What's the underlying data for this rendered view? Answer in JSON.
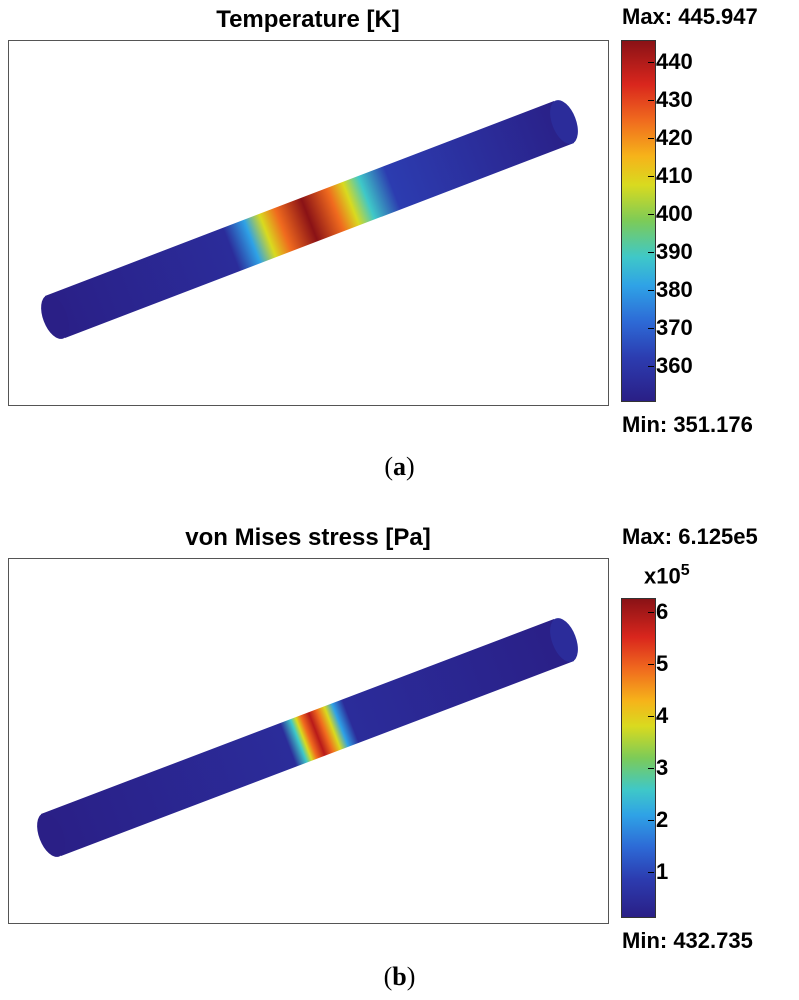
{
  "panel_a": {
    "title": "Temperature [K]",
    "max_label": "Max: 445.947",
    "min_label": "Min: 351.176",
    "colorbar_ticks": [
      "440",
      "430",
      "420",
      "410",
      "400",
      "390",
      "380",
      "370",
      "360"
    ],
    "caption_letter": "a",
    "data_range": [
      351.176,
      445.947
    ]
  },
  "panel_b": {
    "title": "von Mises stress [Pa]",
    "max_label": "Max: 6.125e5",
    "min_label": "Min: 432.735",
    "colorbar_multiplier": "x10",
    "colorbar_exponent": "5",
    "colorbar_ticks": [
      "6",
      "5",
      "4",
      "3",
      "2",
      "1"
    ],
    "caption_letter": "b",
    "data_range": [
      432.735,
      612500
    ]
  },
  "colors": {
    "low": "#2a1f86",
    "mid": "#7ccb58",
    "high": "#8a1216"
  }
}
